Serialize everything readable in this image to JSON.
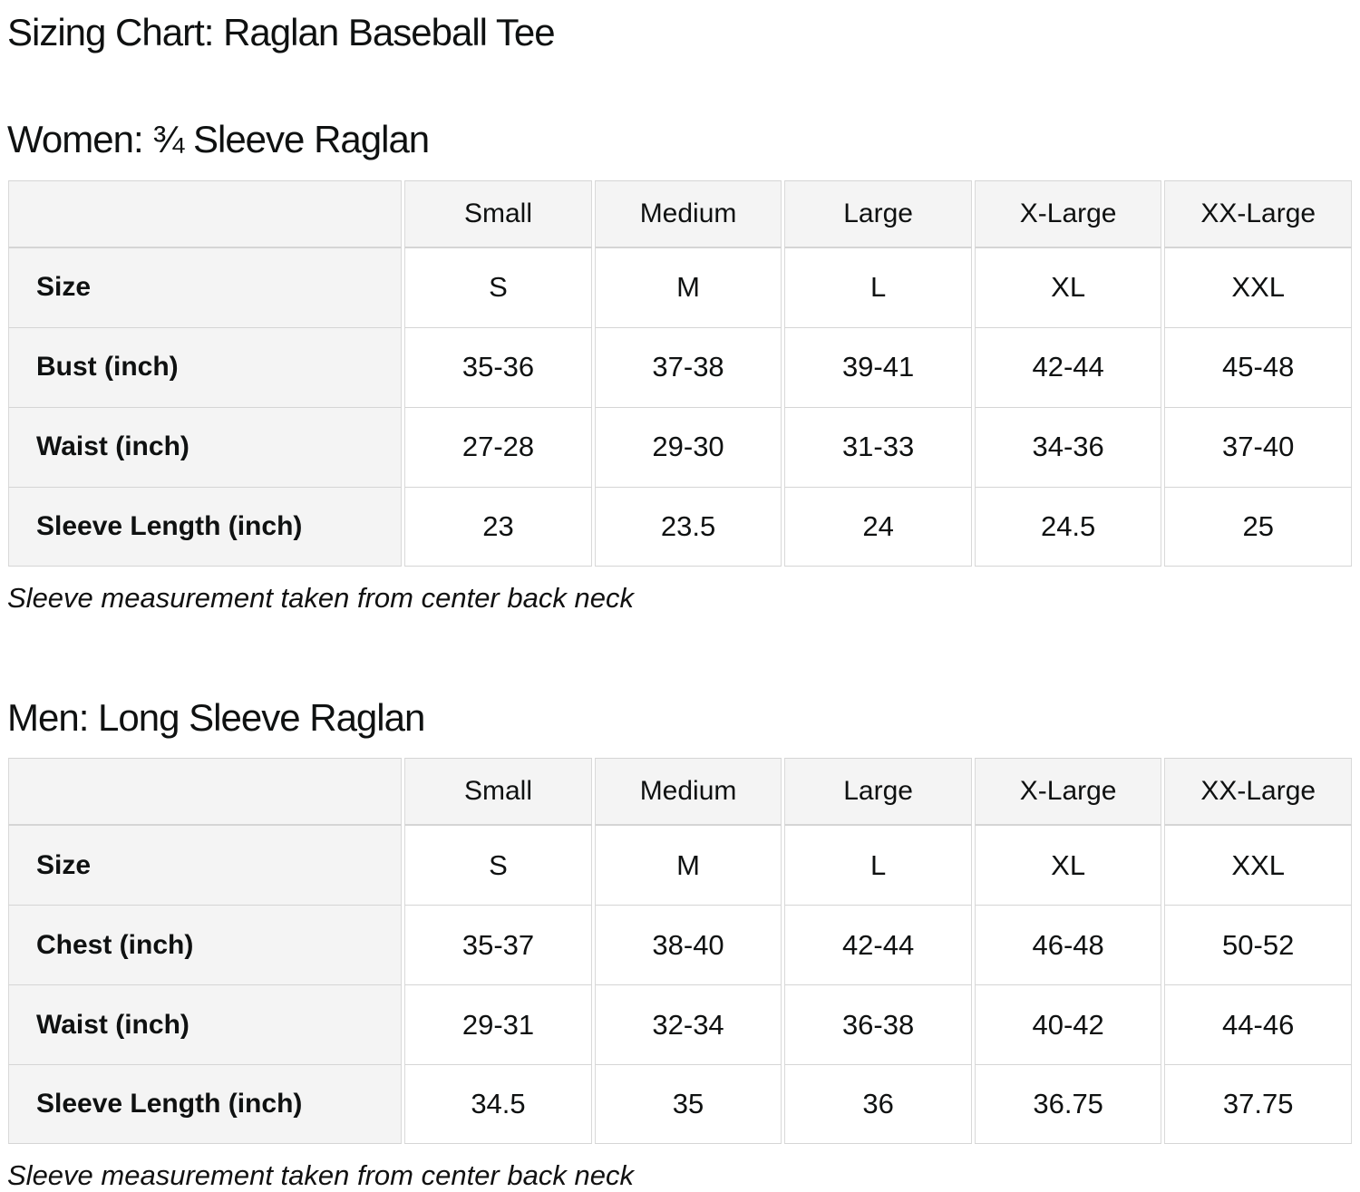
{
  "page": {
    "title": "Sizing Chart: Raglan Baseball Tee"
  },
  "colors": {
    "header_cell_bg": "#f4f4f4",
    "border": "#d5d5d5",
    "text": "#0f1111",
    "page_bg": "#ffffff"
  },
  "sections": [
    {
      "heading": "Women: ¾ Sleeve Raglan",
      "note": "Sleeve measurement taken from center back neck",
      "table": {
        "columns": [
          "",
          "Small",
          "Medium",
          "Large",
          "X-Large",
          "XX-Large"
        ],
        "rows": [
          {
            "label": "Size",
            "values": [
              "S",
              "M",
              "L",
              "XL",
              "XXL"
            ]
          },
          {
            "label": "Bust (inch)",
            "values": [
              "35-36",
              "37-38",
              "39-41",
              "42-44",
              "45-48"
            ]
          },
          {
            "label": "Waist (inch)",
            "values": [
              "27-28",
              "29-30",
              "31-33",
              "34-36",
              "37-40"
            ]
          },
          {
            "label": "Sleeve Length (inch)",
            "values": [
              "23",
              "23.5",
              "24",
              "24.5",
              "25"
            ]
          }
        ]
      }
    },
    {
      "heading": "Men: Long Sleeve Raglan",
      "note": "Sleeve measurement taken from center back neck",
      "table": {
        "columns": [
          "",
          "Small",
          "Medium",
          "Large",
          "X-Large",
          "XX-Large"
        ],
        "rows": [
          {
            "label": "Size",
            "values": [
              "S",
              "M",
              "L",
              "XL",
              "XXL"
            ]
          },
          {
            "label": "Chest (inch)",
            "values": [
              "35-37",
              "38-40",
              "42-44",
              "46-48",
              "50-52"
            ]
          },
          {
            "label": "Waist (inch)",
            "values": [
              "29-31",
              "32-34",
              "36-38",
              "40-42",
              "44-46"
            ]
          },
          {
            "label": "Sleeve Length (inch)",
            "values": [
              "34.5",
              "35",
              "36",
              "36.75",
              "37.75"
            ]
          }
        ]
      }
    }
  ]
}
